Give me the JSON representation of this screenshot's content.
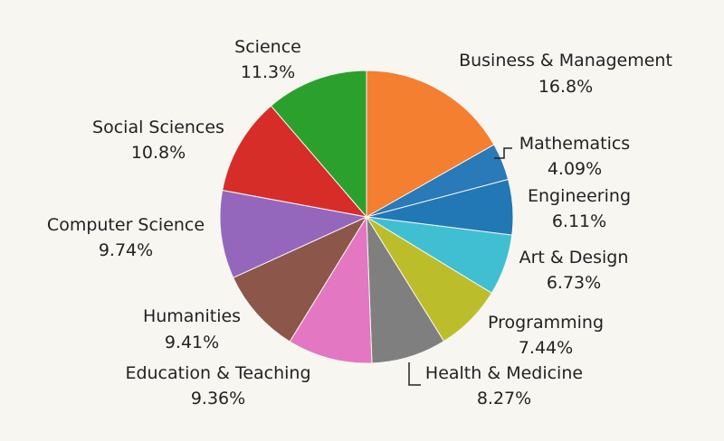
{
  "chart_data": {
    "type": "pie",
    "slices": [
      {
        "label": "Business & Management",
        "value": 16.8,
        "display": "16.8%",
        "color": "#f47f30"
      },
      {
        "label": "Mathematics",
        "value": 4.09,
        "display": "4.09%",
        "color": "#2a79b8"
      },
      {
        "label": "Engineering",
        "value": 6.11,
        "display": "6.11%",
        "color": "#2178b5"
      },
      {
        "label": "Art & Design",
        "value": 6.73,
        "display": "6.73%",
        "color": "#40bfd2"
      },
      {
        "label": "Programming",
        "value": 7.44,
        "display": "7.44%",
        "color": "#bcbd2b"
      },
      {
        "label": "Health & Medicine",
        "value": 8.27,
        "display": "8.27%",
        "color": "#7f7f7f"
      },
      {
        "label": "Education & Teaching",
        "value": 9.36,
        "display": "9.36%",
        "color": "#e377c2"
      },
      {
        "label": "Humanities",
        "value": 9.41,
        "display": "9.41%",
        "color": "#8c564b"
      },
      {
        "label": "Computer Science",
        "value": 9.74,
        "display": "9.74%",
        "color": "#9467bd"
      },
      {
        "label": "Social Sciences",
        "value": 10.8,
        "display": "10.8%",
        "color": "#d62d28"
      },
      {
        "label": "Science",
        "value": 11.3,
        "display": "11.3%",
        "color": "#2ca02c"
      }
    ]
  }
}
